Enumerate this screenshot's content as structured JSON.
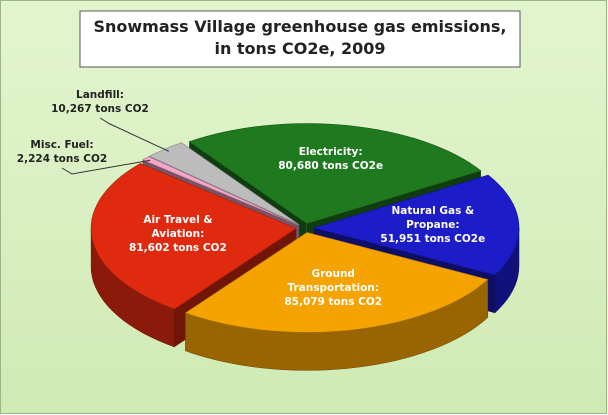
{
  "chart_data": {
    "type": "pie3d",
    "title": [
      "Snowmass Village greenhouse gas emissions,",
      "in tons CO2e, 2009"
    ],
    "categories": [
      "Electricity:",
      "Natural Gas & Propane:",
      "Ground Transportation:",
      "Air Travel & Aviation:",
      "Misc. Fuel:",
      "Landfill:"
    ],
    "values": [
      80680,
      51951,
      85079,
      81602,
      2224,
      10267
    ],
    "value_labels": [
      "80,680 tons CO2e",
      "51,951 tons CO2e",
      "85,079 tons CO2",
      "81,602 tons CO2",
      "2,224 tons CO2",
      "10,267 tons CO2"
    ],
    "colors": [
      "#1f7a1f",
      "#1c1cc8",
      "#f5a300",
      "#e02a10",
      "#f2a6c8",
      "#bcbcbc"
    ]
  }
}
